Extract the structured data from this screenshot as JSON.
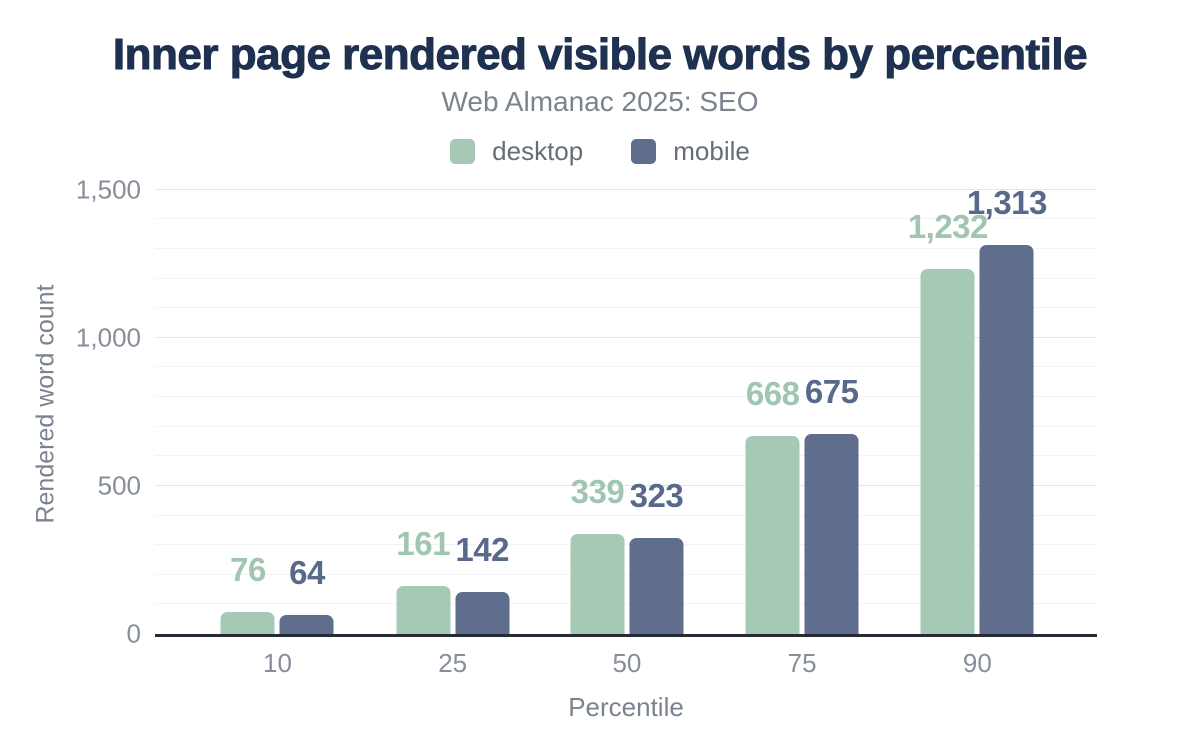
{
  "chart_data": {
    "type": "bar",
    "title": "Inner page rendered visible words by percentile",
    "subtitle": "Web Almanac 2025: SEO",
    "xlabel": "Percentile",
    "ylabel": "Rendered word count",
    "categories": [
      "10",
      "25",
      "50",
      "75",
      "90"
    ],
    "series": [
      {
        "name": "desktop",
        "color": "#a6c9b6",
        "label_color": "#a0c5b1",
        "values": [
          76,
          161,
          339,
          668,
          1232
        ],
        "value_labels": [
          "76",
          "161",
          "339",
          "668",
          "1,232"
        ]
      },
      {
        "name": "mobile",
        "color": "#5e6e8c",
        "label_color": "#59698a",
        "values": [
          64,
          142,
          323,
          675,
          1313
        ],
        "value_labels": [
          "64",
          "142",
          "323",
          "675",
          "1,313"
        ]
      }
    ],
    "yticks": [
      {
        "value": 0,
        "label": "0"
      },
      {
        "value": 500,
        "label": "500"
      },
      {
        "value": 1000,
        "label": "1,000"
      },
      {
        "value": 1500,
        "label": "1,500"
      }
    ],
    "ylim": [
      0,
      1550
    ],
    "grid": {
      "minor_interval": 100,
      "major_interval": 500,
      "enabled": true
    },
    "legend_position": "top",
    "colors": {
      "title": "#1e3150",
      "subtitle": "#7b838e",
      "axis_line": "#272b33",
      "tick_text": "#878e99"
    }
  }
}
